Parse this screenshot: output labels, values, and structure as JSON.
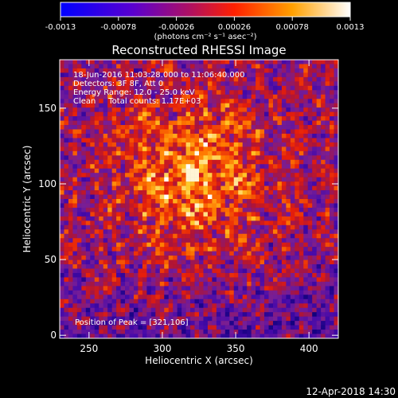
{
  "colorbar": {
    "ticks": [
      "-0.0013",
      "-0.00078",
      "-0.00026",
      "0.00026",
      "0.00078",
      "0.0013"
    ],
    "unit_label": "(photons cm⁻² s⁻¹ asec⁻²)"
  },
  "chart_data": {
    "type": "heatmap",
    "title": "Reconstructed RHESSI Image",
    "xlabel": "Heliocentric X (arcsec)",
    "ylabel": "Heliocentric Y (arcsec)",
    "xlim": [
      230,
      420
    ],
    "ylim": [
      -2,
      182
    ],
    "x_ticks": [
      250,
      300,
      350,
      400
    ],
    "y_ticks": [
      0,
      50,
      100,
      150
    ],
    "value_range": [
      -0.0013,
      0.0013
    ],
    "peak": [
      321,
      106
    ],
    "info_lines": [
      "18-Jun-2016 11:03:28.000 to 11:06:40.000",
      "Detectors: 3F 8F, Att 0",
      "Energy Range: 12.0 - 25.0 keV",
      "Clean     Total counts: 1.17E+03"
    ],
    "peak_label": "Position of Peak = [321,106]"
  },
  "footer": {
    "timestamp": "12-Apr-2018 14:30"
  }
}
